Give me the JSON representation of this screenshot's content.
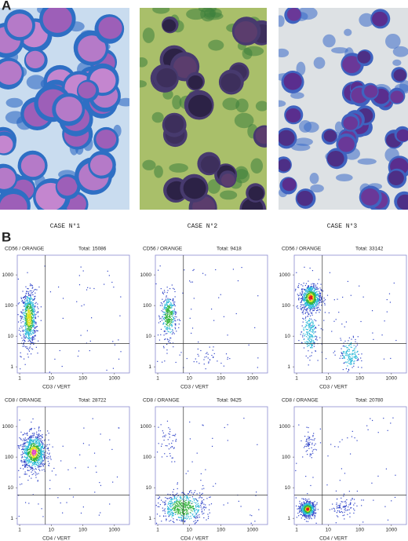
{
  "figure": {
    "panel_a": "A",
    "panel_b": "B",
    "cases": [
      "CASE N°1",
      "CASE N°2",
      "CASE N°3"
    ],
    "axes": {
      "xticks": [
        1,
        10,
        100,
        1000
      ],
      "yticks": [
        1,
        10,
        100,
        1000
      ],
      "xlim": [
        0.84,
        3000
      ],
      "ylim": [
        0.63,
        4400
      ],
      "log": true
    },
    "plots": [
      {
        "y_label": "CD56 / ORANGE",
        "total": "Total: 15086",
        "x_label": "CD3 / VERT"
      },
      {
        "y_label": "CD56 / ORANGE",
        "total": "Total: 9418",
        "x_label": "CD3 / VERT"
      },
      {
        "y_label": "CD56 / ORANGE",
        "total": "Total: 33142",
        "x_label": "CD3 / VERT"
      },
      {
        "y_label": "CD8 / ORANGE",
        "total": "Total: 28722",
        "x_label": "CD4 / VERT"
      },
      {
        "y_label": "CD8 / ORANGE",
        "total": "Total: 9425",
        "x_label": "CD4 / VERT"
      },
      {
        "y_label": "CD8 / ORANGE",
        "total": "Total: 20780",
        "x_label": "CD4 / VERT"
      }
    ]
  }
}
